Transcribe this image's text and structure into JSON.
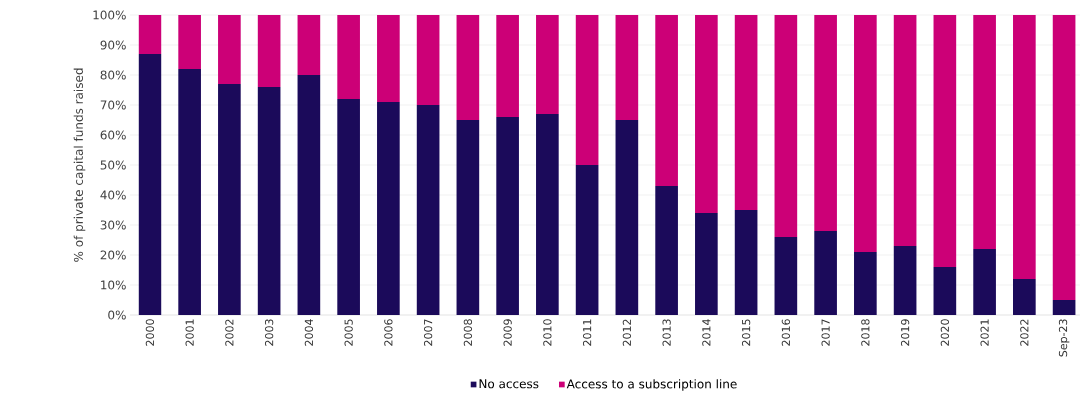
{
  "chart_data": {
    "type": "bar",
    "stacked": true,
    "ylabel": "% of private capital funds raised",
    "categories": [
      "2000",
      "2001",
      "2002",
      "2003",
      "2004",
      "2005",
      "2006",
      "2007",
      "2008",
      "2009",
      "2010",
      "2011",
      "2012",
      "2013",
      "2014",
      "2015",
      "2016",
      "2017",
      "2018",
      "2019",
      "2020",
      "2021",
      "2022",
      "Sep-23"
    ],
    "series": [
      {
        "name": "No access",
        "color": "#1b0a5a",
        "values": [
          87,
          82,
          77,
          76,
          80,
          72,
          71,
          70,
          65,
          66,
          67,
          50,
          65,
          43,
          34,
          35,
          26,
          28,
          21,
          23,
          16,
          22,
          12,
          5
        ]
      },
      {
        "name": "Access to a subscription line",
        "color": "#cc0077",
        "values": [
          13,
          18,
          23,
          24,
          20,
          28,
          29,
          30,
          35,
          34,
          33,
          50,
          35,
          57,
          66,
          65,
          74,
          72,
          79,
          77,
          84,
          78,
          88,
          95
        ]
      }
    ],
    "ylim": [
      0,
      100
    ],
    "yticks": [
      {
        "value": 0,
        "label": "0%"
      },
      {
        "value": 10,
        "label": "10%"
      },
      {
        "value": 20,
        "label": "20%"
      },
      {
        "value": 30,
        "label": "30%"
      },
      {
        "value": 40,
        "label": "40%"
      },
      {
        "value": 50,
        "label": "50%"
      },
      {
        "value": 60,
        "label": "60%"
      },
      {
        "value": 70,
        "label": "70%"
      },
      {
        "value": 80,
        "label": "80%"
      },
      {
        "value": 90,
        "label": "90%"
      },
      {
        "value": 100,
        "label": "100%"
      }
    ],
    "grid": "y",
    "legend": "bottom"
  }
}
